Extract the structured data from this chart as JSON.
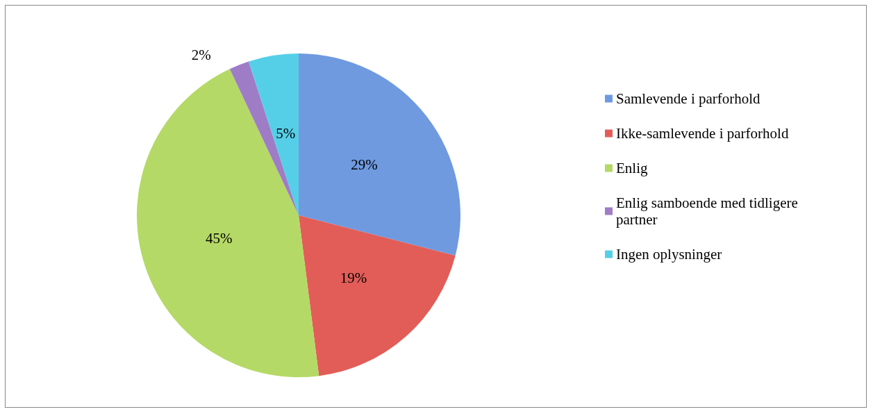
{
  "chart_data": {
    "type": "pie",
    "categories": [
      "Samlevende i parforhold",
      "Ikke-samlevende i parforhold",
      "Enlig",
      "Enlig samboende med tidligere partner",
      "Ingen oplysninger"
    ],
    "values": [
      29,
      19,
      45,
      2,
      5
    ],
    "colors": [
      "#6f9ae0",
      "#e25d58",
      "#b5d966",
      "#9f7cc6",
      "#55cfe8"
    ],
    "value_labels": [
      "29%",
      "19%",
      "45%",
      "2%",
      "5%"
    ],
    "legend": "right"
  }
}
